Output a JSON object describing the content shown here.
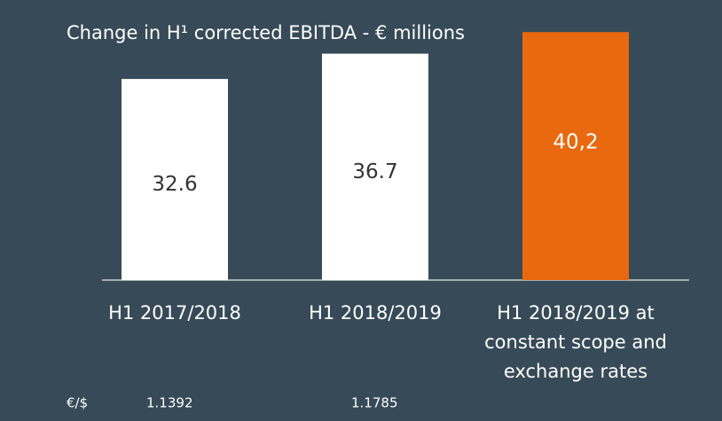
{
  "chart_data": {
    "type": "bar",
    "title": "Change in H¹ corrected EBITDA - € millions",
    "categories": [
      "H1 2017/2018",
      "H1 2018/2019",
      "H1 2018/2019 at constant scope and exchange rates"
    ],
    "values": [
      32.6,
      36.7,
      40.2
    ],
    "value_labels": [
      "32.6",
      "36.7",
      "40,2"
    ],
    "colors": [
      "#ffffff",
      "#ffffff",
      "#e8690f"
    ],
    "background": "#374a57"
  },
  "footer": {
    "label": "€/$",
    "rates": [
      "1.1392",
      "1.1785"
    ]
  }
}
